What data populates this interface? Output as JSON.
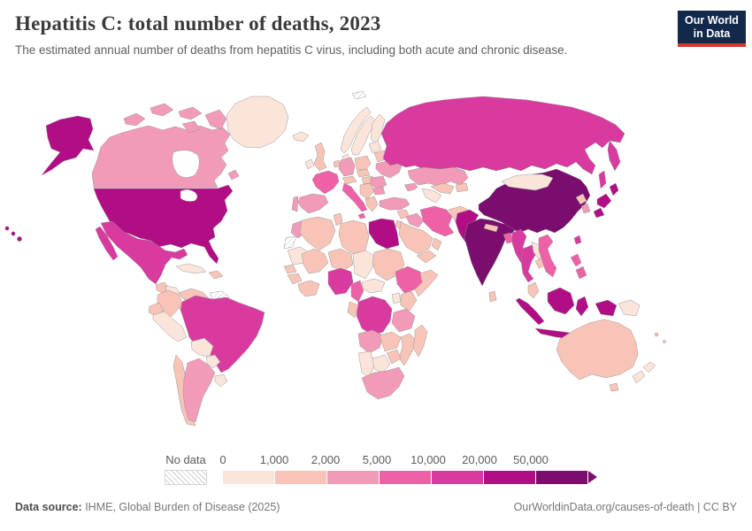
{
  "header": {
    "title": "Hepatitis C: total number of deaths, 2023",
    "subtitle": "The estimated annual number of deaths from hepatitis C virus, including both acute and chronic disease."
  },
  "logo": {
    "line1": "Our World",
    "line2": "in Data",
    "bg_color": "#12294b",
    "accent_color": "#d7382e"
  },
  "legend": {
    "no_data_label": "No data"
  },
  "footer": {
    "source_label": "Data source:",
    "source_text": " IHME, Global Burden of Disease (2025)",
    "right_text": "OurWorldinData.org/causes-of-death | CC BY"
  },
  "chart_data": {
    "type": "heatmap",
    "subtype": "choropleth-world-map",
    "title": "Hepatitis C: total number of deaths, 2023",
    "unit": "deaths",
    "year": 2023,
    "legend": {
      "position": "bottom",
      "tick_labels": [
        "0",
        "1,000",
        "2,000",
        "5,000",
        "10,000",
        "20,000",
        "50,000"
      ],
      "bin_thresholds": [
        0,
        1000,
        2000,
        5000,
        10000,
        20000,
        50000
      ],
      "bin_ranges": [
        "0-1,000",
        "1,000-2,000",
        "2,000-5,000",
        "5,000-10,000",
        "10,000-20,000",
        "20,000-50,000",
        "50,000+"
      ],
      "bin_colors": [
        "#fbe5db",
        "#f8c4b8",
        "#f29bb9",
        "#ee61a7",
        "#d83a9f",
        "#b10d85",
        "#7a0d6e"
      ],
      "no_data_fill": "hatched"
    },
    "countries": {
      "greenland": 0,
      "canada": 2,
      "united-states": 5,
      "mexico": 4,
      "guatemala": 1,
      "honduras-nicaragua": 0,
      "costa-rica-panama": 1,
      "cuba": 0,
      "hispaniola": 1,
      "colombia": 1,
      "venezuela": 1,
      "guyanas": null,
      "ecuador": 1,
      "peru": 0,
      "brazil": 4,
      "bolivia": 0,
      "paraguay": 0,
      "chile": 1,
      "argentina": 2,
      "uruguay": 0,
      "iceland": 0,
      "ireland": 0,
      "united-kingdom": 1,
      "norway": 0,
      "sweden": 0,
      "finland": 0,
      "denmark": 0,
      "baltics": 0,
      "belarus": 1,
      "poland": 1,
      "germany": 2,
      "benelux": 1,
      "france": 3,
      "spain": 2,
      "portugal": 2,
      "italy": 3,
      "switzerland-austria": 1,
      "czech-slovakia": 1,
      "hungary": 1,
      "balkans": 1,
      "romania": 2,
      "bulgaria": 2,
      "greece": 1,
      "ukraine": 2,
      "svalbard": null,
      "russia": 4,
      "kazakhstan": 2,
      "uzbekistan": 1,
      "turkmenistan": 0,
      "kyrgyzstan-tajikistan": 1,
      "caucasus": 2,
      "turkey": 2,
      "syria": 1,
      "iraq": 2,
      "iran": 3,
      "afghanistan": 1,
      "jordan-israel": 1,
      "saudi-arabia": 1,
      "yemen": 1,
      "oman": 1,
      "pakistan": 5,
      "india": 6,
      "nepal": 1,
      "bangladesh": 3,
      "sri-lanka": 1,
      "china": 6,
      "mongolia": 0,
      "north-korea": 1,
      "south-korea": 2,
      "japan": 5,
      "taiwan": 4,
      "myanmar": 4,
      "thailand": 4,
      "laos": 0,
      "cambodia": 1,
      "vietnam": 3,
      "malaysia": 1,
      "indonesia": 5,
      "philippines": 3,
      "papua-new-guinea": 0,
      "australia": 1,
      "new-zealand": 0,
      "pacific-islands": 1,
      "morocco": 2,
      "western-sahara": null,
      "algeria": 1,
      "tunisia": 1,
      "libya": 1,
      "egypt": 5,
      "mauritania": 0,
      "mali": 1,
      "niger": 1,
      "chad": 0,
      "sudan": 1,
      "senegal": 1,
      "guinea": 1,
      "ivory-coast-ghana": 1,
      "nigeria": 4,
      "cameroon": 3,
      "central-african-republic": 0,
      "ethiopia": 3,
      "somalia": 1,
      "kenya": 1,
      "uganda": 0,
      "dr-congo": 4,
      "congo-gabon": 1,
      "tanzania": 2,
      "angola": 2,
      "zambia": 1,
      "mozambique": 1,
      "zimbabwe": 1,
      "namibia": 0,
      "botswana": 0,
      "south-africa": 2,
      "madagascar": 1
    }
  }
}
